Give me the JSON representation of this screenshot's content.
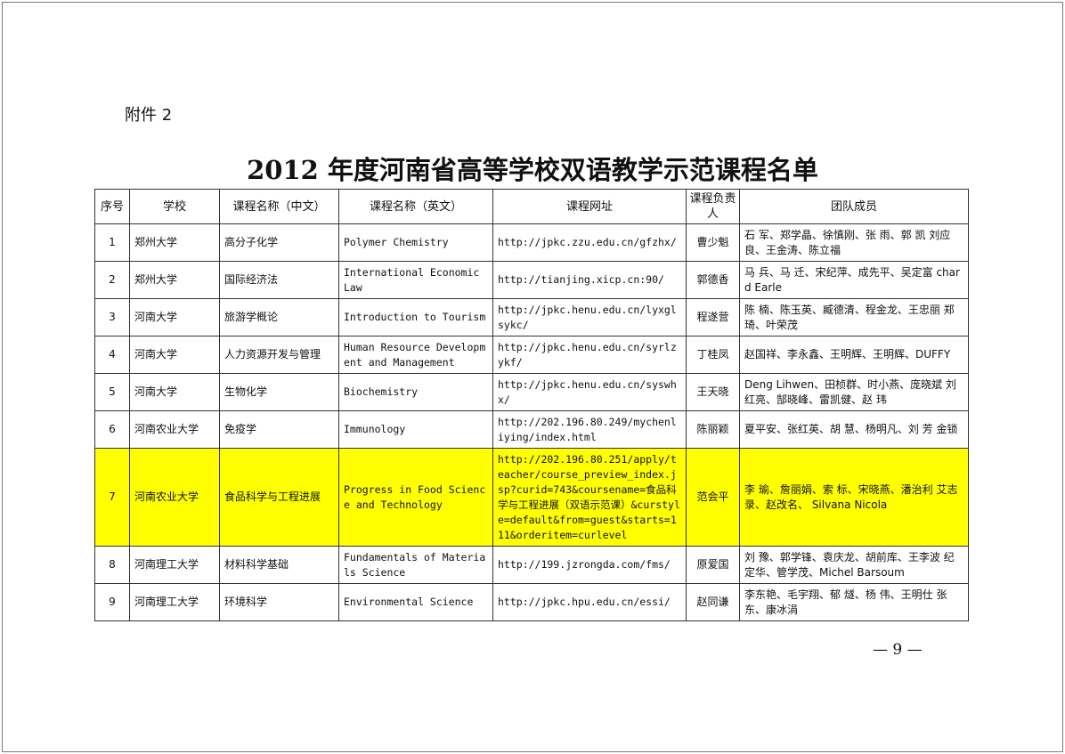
{
  "attachment_label": "附件 2",
  "title": "2012 年度河南省高等学校双语教学示范课程名单",
  "table": {
    "headers": [
      "序号",
      "学校",
      "课程名称（中文）",
      "课程名称（英文）",
      "课程网址",
      "课程负责人",
      "团队成员"
    ],
    "rows": [
      {
        "no": "1",
        "school": "郑州大学",
        "name_cn": "高分子化学",
        "name_en": "Polymer Chemistry",
        "url": "http://jpkc.zzu.edu.cn/gfzhx/",
        "leader": "曹少魁",
        "team": "石 军、郑学晶、徐慎刚、张 雨、郭 凯 刘应良、王金涛、陈立福"
      },
      {
        "no": "2",
        "school": "郑州大学",
        "name_cn": "国际经济法",
        "name_en": "International Economic Law",
        "url": "http://tianjing.xicp.cn:90/",
        "leader": "郭德香",
        "team": "马 兵、马 迁、宋纪萍、成先平、吴定富 chard Earle"
      },
      {
        "no": "3",
        "school": "河南大学",
        "name_cn": "旅游学概论",
        "name_en": "Introduction to Tourism",
        "url": "http://jpkc.henu.edu.cn/lyxglsykc/",
        "leader": "程遂营",
        "team": "陈 楠、陈玉英、臧德清、程金龙、王忠丽 郑 琦、叶荣茂"
      },
      {
        "no": "4",
        "school": "河南大学",
        "name_cn": "人力资源开发与管理",
        "name_en": "Human Resource Development and Management",
        "url": "http://jpkc.henu.edu.cn/syrlzykf/",
        "leader": "丁桂凤",
        "team": "赵国祥、李永鑫、王明辉、王明辉、DUFFY"
      },
      {
        "no": "5",
        "school": "河南大学",
        "name_cn": "生物化学",
        "name_en": "Biochemistry",
        "url": "http://jpkc.henu.edu.cn/syswhx/",
        "leader": "王天晓",
        "team": "Deng Lihwen、田桢群、时小燕、庞晓斌 刘红亮、郜晓峰、雷凯健、赵 玮"
      },
      {
        "no": "6",
        "school": "河南农业大学",
        "name_cn": "免疫学",
        "name_en": "Immunology",
        "url": "http://202.196.80.249/mychenliying/index.html",
        "leader": "陈丽颖",
        "team": "夏平安、张红英、胡 慧、杨明凡、刘 芳 金锁"
      },
      {
        "no": "7",
        "school": "河南农业大学",
        "name_cn": "食品科学与工程进展",
        "name_en": "Progress in Food Science and Technology",
        "url": "http://202.196.80.251/apply/teacher/course_preview_index.jsp?curid=743&coursename=食品科学与工程进展（双语示范课）&curstyle=default&from=guest&starts=111&orderitem=curlevel",
        "leader": "范会平",
        "team": "李 瑜、詹丽娟、索 标、宋晓燕、潘治利 艾志录、赵改名、 Silvana Nicola",
        "highlight": true
      },
      {
        "no": "8",
        "school": "河南理工大学",
        "name_cn": "材料科学基础",
        "name_en": "Fundamentals of Materials Science",
        "url": "http://199.jzrongda.com/fms/",
        "leader": "原爱国",
        "team": "刘 豫、郭学锋、袁庆龙、胡前库、王李波 纪定华、管学茂、Michel Barsoum"
      },
      {
        "no": "9",
        "school": "河南理工大学",
        "name_cn": "环境科学",
        "name_en": "Environmental Science",
        "url": "http://jpkc.hpu.edu.cn/essi/",
        "leader": "赵同谦",
        "team": "李东艳、毛宇翔、郁 燧、杨 伟、王明仕 张 东、康冰涓"
      }
    ]
  },
  "highlight_color": "#ffff00",
  "page_number": "— 9 —"
}
